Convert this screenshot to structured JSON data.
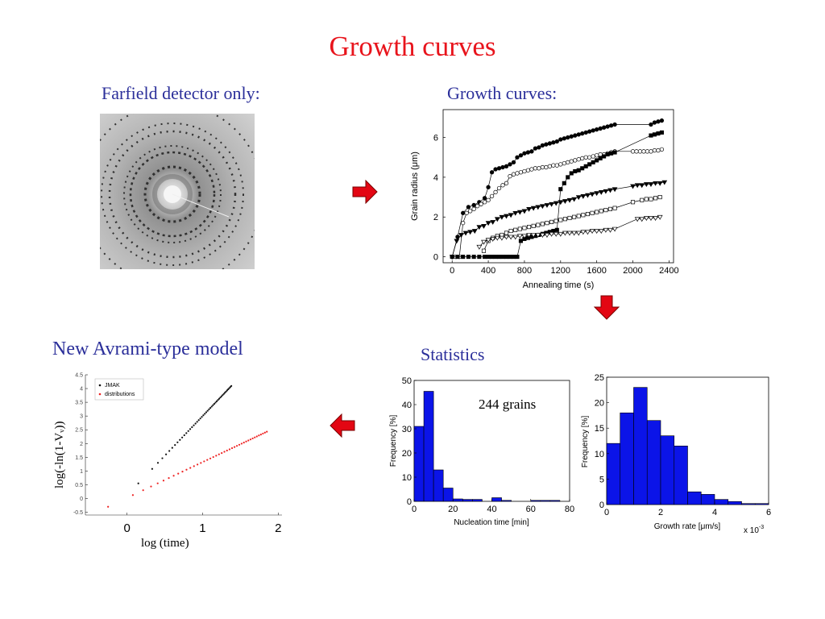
{
  "slide": {
    "title": "Growth curves",
    "farfield_label": "Farfield detector only:",
    "growth_label": "Growth curves:",
    "avrami_label": "New Avrami-type model",
    "statistics_label": "Statistics",
    "grains_note": "244 grains"
  },
  "colors": {
    "title": "#e8141c",
    "label": "#2b2f9a",
    "arrow": "#e30613",
    "bars": "#0b14e8"
  },
  "chart_data": [
    {
      "id": "growth",
      "type": "line",
      "xlabel": "Annealing time (s)",
      "ylabel": "Grain radius (μm)",
      "xlim": [
        -100,
        2450
      ],
      "ylim": [
        -0.3,
        7.4
      ],
      "xticks": [
        0,
        400,
        800,
        1200,
        1600,
        2000,
        2400
      ],
      "yticks": [
        0,
        2,
        4,
        6
      ],
      "series": [
        {
          "marker": "circle-filled",
          "x": [
            0,
            60,
            120,
            180,
            240,
            300,
            360,
            400,
            440,
            480,
            520,
            560,
            600,
            640,
            680,
            720,
            760,
            800,
            840,
            880,
            920,
            960,
            1000,
            1040,
            1080,
            1120,
            1160,
            1200,
            1240,
            1280,
            1320,
            1360,
            1400,
            1440,
            1480,
            1520,
            1560,
            1600,
            1640,
            1680,
            1720,
            1760,
            1800,
            2200,
            2240,
            2280,
            2320
          ],
          "y": [
            0,
            1.0,
            2.2,
            2.5,
            2.6,
            2.75,
            2.95,
            3.5,
            4.25,
            4.4,
            4.45,
            4.5,
            4.55,
            4.65,
            4.75,
            5.0,
            5.1,
            5.2,
            5.25,
            5.3,
            5.45,
            5.5,
            5.6,
            5.65,
            5.7,
            5.75,
            5.8,
            5.9,
            5.95,
            6.0,
            6.05,
            6.1,
            6.15,
            6.2,
            6.25,
            6.3,
            6.35,
            6.4,
            6.45,
            6.5,
            6.55,
            6.6,
            6.65,
            6.65,
            6.75,
            6.8,
            6.85
          ]
        },
        {
          "marker": "circle-open",
          "x": [
            0,
            40,
            80,
            120,
            160,
            200,
            240,
            280,
            320,
            360,
            400,
            440,
            480,
            520,
            560,
            600,
            640,
            680,
            720,
            760,
            800,
            840,
            880,
            920,
            960,
            1000,
            1040,
            1080,
            1120,
            1160,
            1200,
            1240,
            1280,
            1320,
            1360,
            1400,
            1440,
            1480,
            1520,
            1560,
            1600,
            1640,
            1680,
            1720,
            1760,
            1800,
            2000,
            2040,
            2080,
            2120,
            2160,
            2200,
            2240,
            2280,
            2320
          ],
          "y": [
            0,
            0,
            0,
            1.7,
            2.2,
            2.3,
            2.4,
            2.55,
            2.65,
            2.75,
            2.85,
            3.05,
            3.25,
            3.45,
            3.6,
            3.7,
            4.05,
            4.15,
            4.2,
            4.25,
            4.3,
            4.35,
            4.4,
            4.45,
            4.45,
            4.5,
            4.5,
            4.55,
            4.6,
            4.6,
            4.65,
            4.7,
            4.75,
            4.8,
            4.85,
            4.9,
            4.95,
            5.0,
            5.0,
            5.05,
            5.1,
            5.15,
            5.15,
            5.2,
            5.25,
            5.3,
            5.3,
            5.3,
            5.3,
            5.3,
            5.3,
            5.3,
            5.35,
            5.35,
            5.4
          ]
        },
        {
          "marker": "triangle-down-filled",
          "x": [
            0,
            50,
            100,
            150,
            200,
            250,
            300,
            350,
            400,
            450,
            500,
            550,
            600,
            650,
            700,
            750,
            800,
            850,
            900,
            950,
            1000,
            1050,
            1100,
            1150,
            1200,
            1250,
            1300,
            1350,
            1400,
            1450,
            1500,
            1550,
            1600,
            1650,
            1700,
            1750,
            1800,
            2000,
            2050,
            2100,
            2150,
            2200,
            2250,
            2300,
            2350
          ],
          "y": [
            0,
            0.8,
            1.1,
            1.2,
            1.25,
            1.3,
            1.5,
            1.55,
            1.7,
            1.75,
            1.9,
            2.0,
            2.05,
            2.1,
            2.2,
            2.25,
            2.3,
            2.4,
            2.45,
            2.5,
            2.55,
            2.6,
            2.65,
            2.7,
            2.75,
            2.8,
            2.85,
            2.9,
            3.0,
            3.05,
            3.1,
            3.15,
            3.2,
            3.25,
            3.3,
            3.35,
            3.4,
            3.55,
            3.6,
            3.6,
            3.65,
            3.65,
            3.7,
            3.7,
            3.75
          ]
        },
        {
          "marker": "square-filled",
          "x": [
            0,
            60,
            120,
            180,
            240,
            300,
            360,
            400,
            440,
            480,
            520,
            560,
            600,
            640,
            680,
            720,
            760,
            800,
            840,
            880,
            920,
            960,
            1000,
            1040,
            1080,
            1120,
            1160,
            1200,
            1240,
            1280,
            1320,
            1360,
            1400,
            1440,
            1480,
            1520,
            1560,
            1600,
            1640,
            1680,
            1720,
            1760,
            1800,
            2200,
            2240,
            2280,
            2320
          ],
          "y": [
            0,
            0,
            0,
            0,
            0,
            0,
            0,
            0,
            0,
            0,
            0,
            0,
            0,
            0,
            0,
            0,
            0.8,
            0.9,
            0.95,
            1.0,
            1.05,
            1.1,
            1.15,
            1.2,
            1.25,
            1.3,
            1.35,
            3.4,
            3.7,
            4.0,
            4.2,
            4.3,
            4.35,
            4.45,
            4.55,
            4.65,
            4.75,
            4.85,
            4.95,
            5.05,
            5.15,
            5.2,
            5.25,
            6.1,
            6.15,
            6.2,
            6.25
          ]
        },
        {
          "marker": "square-open",
          "x": [
            350,
            400,
            450,
            500,
            550,
            600,
            650,
            700,
            750,
            800,
            850,
            900,
            950,
            1000,
            1050,
            1100,
            1150,
            1200,
            1250,
            1300,
            1350,
            1400,
            1450,
            1500,
            1550,
            1600,
            1650,
            1700,
            1750,
            1800,
            2000,
            2100,
            2150,
            2200,
            2250,
            2300
          ],
          "y": [
            0.3,
            0.8,
            0.95,
            1.05,
            1.1,
            1.2,
            1.3,
            1.35,
            1.4,
            1.45,
            1.5,
            1.55,
            1.6,
            1.65,
            1.7,
            1.75,
            1.8,
            1.85,
            1.9,
            1.95,
            2.0,
            2.05,
            2.1,
            2.15,
            2.2,
            2.25,
            2.3,
            2.35,
            2.4,
            2.45,
            2.75,
            2.85,
            2.9,
            2.9,
            2.95,
            3.0
          ]
        },
        {
          "marker": "triangle-down-open",
          "x": [
            300,
            350,
            400,
            450,
            500,
            550,
            600,
            650,
            700,
            750,
            800,
            850,
            900,
            950,
            1000,
            1050,
            1100,
            1150,
            1200,
            1250,
            1300,
            1350,
            1400,
            1450,
            1500,
            1550,
            1600,
            1650,
            1700,
            1750,
            1800,
            2050,
            2100,
            2150,
            2200,
            2250,
            2300
          ],
          "y": [
            0.5,
            0.75,
            0.85,
            0.9,
            0.95,
            0.95,
            1.0,
            1.0,
            1.0,
            1.05,
            1.05,
            1.1,
            1.1,
            1.1,
            1.1,
            1.1,
            1.15,
            1.15,
            1.15,
            1.2,
            1.2,
            1.2,
            1.2,
            1.25,
            1.25,
            1.3,
            1.3,
            1.3,
            1.35,
            1.35,
            1.4,
            1.9,
            1.9,
            1.95,
            1.95,
            1.95,
            2.0
          ]
        }
      ]
    },
    {
      "id": "avrami",
      "type": "scatter",
      "xlabel": "log (time)",
      "ylabel": "log(-ln(1-Vᵥ))",
      "xlim": [
        -0.55,
        2.05
      ],
      "ylim": [
        -0.6,
        4.5
      ],
      "xticks": [
        0,
        1,
        2
      ],
      "yticks": [
        -0.5,
        0,
        0.5,
        1,
        1.5,
        2,
        2.5,
        3,
        3.5,
        4,
        4.5
      ],
      "ytick_labels": [
        "-0.5",
        "0",
        "0.5",
        "1",
        "1.5",
        "2",
        "2.5",
        "3",
        "3.5",
        "4",
        "4.5"
      ],
      "legend": {
        "position": "top-left",
        "entries": [
          "JMAK",
          "distributions"
        ]
      },
      "series": [
        {
          "name": "JMAK",
          "color": "#111111",
          "x_range": [
            0.15,
            1.38
          ],
          "y_at_start": 0.55,
          "slope": 2.88
        },
        {
          "name": "distributions",
          "color": "#ee2222",
          "x_range": [
            -0.25,
            1.85
          ],
          "y_at_start": -0.3,
          "slope": 1.3
        }
      ]
    },
    {
      "id": "nucleation",
      "type": "bar",
      "xlabel": "Nucleation time [min]",
      "ylabel": "Frequency [%]",
      "bin_width": 5,
      "bin_starts": [
        0,
        5,
        10,
        15,
        20,
        25,
        30,
        35,
        40,
        45,
        50,
        55,
        60,
        65,
        70,
        75
      ],
      "values": [
        31,
        45.5,
        13,
        5.5,
        1,
        0.8,
        0.8,
        0,
        1.5,
        0.4,
        0,
        0,
        0.4,
        0.4,
        0.4,
        0
      ],
      "xlim": [
        0,
        80
      ],
      "ylim": [
        0,
        50
      ],
      "xticks": [
        0,
        20,
        40,
        60,
        80
      ],
      "yticks": [
        0,
        10,
        20,
        30,
        40,
        50
      ]
    },
    {
      "id": "growthrate",
      "type": "bar",
      "xlabel": "Growth rate [μm/s]",
      "ylabel": "Frequency [%]",
      "x_multiplier": "x 10",
      "x_multiplier_exp": "-3",
      "bin_width": 0.5,
      "bin_starts": [
        0,
        0.5,
        1.0,
        1.5,
        2.0,
        2.5,
        3.0,
        3.5,
        4.0,
        4.5,
        5.0,
        5.5
      ],
      "values": [
        12,
        18,
        23,
        16.5,
        13.5,
        11.5,
        2.5,
        2,
        1,
        0.6,
        0.2,
        0.2
      ],
      "xlim": [
        0,
        6
      ],
      "ylim": [
        0,
        25
      ],
      "xticks": [
        0,
        2,
        4,
        6
      ],
      "yticks": [
        0,
        5,
        10,
        15,
        20,
        25
      ]
    }
  ]
}
